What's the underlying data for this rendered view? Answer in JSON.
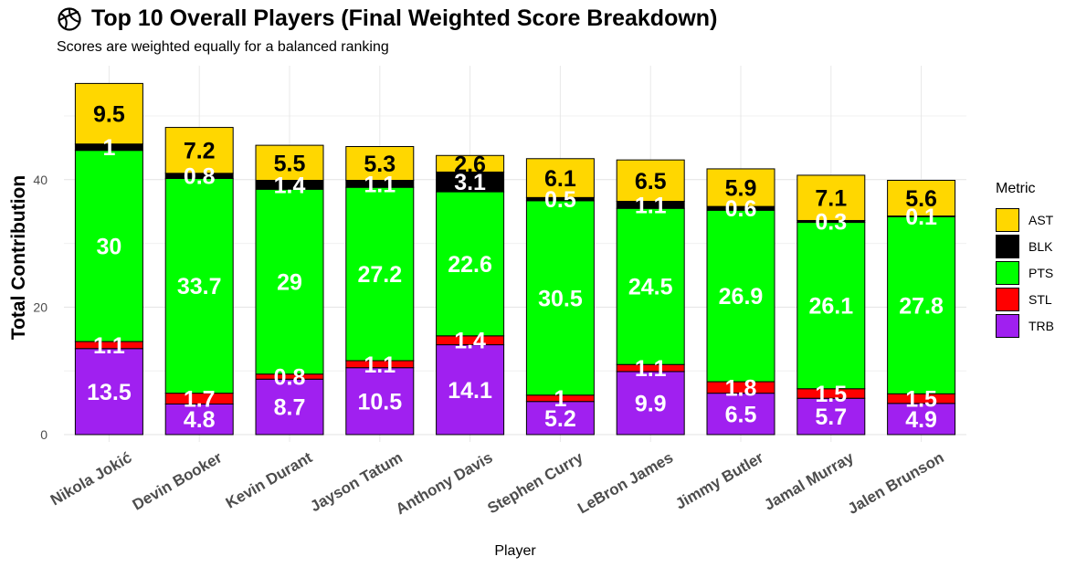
{
  "title": "Top 10 Overall Players (Final Weighted Score Breakdown)",
  "title_icon": "basketball-icon",
  "subtitle": "Scores are weighted equally for a balanced ranking",
  "chart_data": {
    "type": "bar",
    "stacked": true,
    "xlabel": "Player",
    "ylabel": "Total Contribution",
    "ylim": [
      0,
      58
    ],
    "yticks": [
      0,
      20,
      40
    ],
    "grid": true,
    "legend_title": "Metric",
    "legend_position": "right",
    "categories": [
      "Nikola Jokić",
      "Devin Booker",
      "Kevin Durant",
      "Jayson Tatum",
      "Anthony Davis",
      "Stephen Curry",
      "LeBron James",
      "Jimmy Butler",
      "Jamal Murray",
      "Jalen Brunson"
    ],
    "stack_order": [
      "TRB",
      "STL",
      "PTS",
      "BLK",
      "AST"
    ],
    "series": [
      {
        "name": "AST",
        "color": "#FFD700",
        "values": [
          9.5,
          7.2,
          5.5,
          5.3,
          2.6,
          6.1,
          6.5,
          5.9,
          7.1,
          5.6
        ]
      },
      {
        "name": "BLK",
        "color": "#000000",
        "values": [
          1,
          0.8,
          1.4,
          1.1,
          3.1,
          0.5,
          1.1,
          0.6,
          0.3,
          0.1
        ]
      },
      {
        "name": "PTS",
        "color": "#00FF00",
        "values": [
          30,
          33.7,
          29,
          27.2,
          22.6,
          30.5,
          24.5,
          26.9,
          26.1,
          27.8
        ]
      },
      {
        "name": "STL",
        "color": "#FF0000",
        "values": [
          1.1,
          1.7,
          0.8,
          1.1,
          1.4,
          1,
          1.1,
          1.8,
          1.5,
          1.5
        ]
      },
      {
        "name": "TRB",
        "color": "#A020F0",
        "values": [
          13.5,
          4.8,
          8.7,
          10.5,
          14.1,
          5.2,
          9.9,
          6.5,
          5.7,
          4.9
        ]
      }
    ]
  }
}
